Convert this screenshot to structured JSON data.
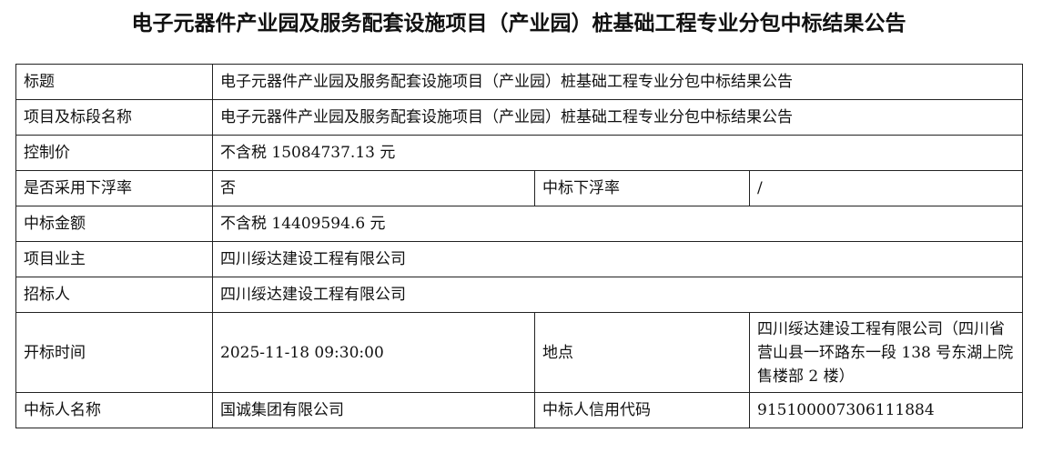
{
  "title": "电子元器件产业园及服务配套设施项目（产业园）桩基础工程专业分包中标结果公告",
  "rows": {
    "title_label": "标题",
    "title_value": "电子元器件产业园及服务配套设施项目（产业园）桩基础工程专业分包中标结果公告",
    "project_label": "项目及标段名称",
    "project_value": "电子元器件产业园及服务配套设施项目（产业园）桩基础工程专业分包中标结果公告",
    "control_price_label": "控制价",
    "control_price_value": "不含税 15084737.13 元",
    "float_rate_used_label": "是否采用下浮率",
    "float_rate_used_value": "否",
    "bid_float_rate_label": "中标下浮率",
    "bid_float_rate_value": "/",
    "bid_amount_label": "中标金额",
    "bid_amount_value": "不含税 14409594.6 元",
    "owner_label": "项目业主",
    "owner_value": "四川绥达建设工程有限公司",
    "tenderer_label": "招标人",
    "tenderer_value": "四川绥达建设工程有限公司",
    "opening_time_label": "开标时间",
    "opening_time_value": "2025-11-18 09:30:00",
    "location_label": "地点",
    "location_value": "四川绥达建设工程有限公司（四川省营山县一环路东一段 138 号东湖上院售楼部 2 楼）",
    "winner_label": "中标人名称",
    "winner_value": "国诚集团有限公司",
    "credit_code_label": "中标人信用代码",
    "credit_code_value": "915100007306111884"
  }
}
